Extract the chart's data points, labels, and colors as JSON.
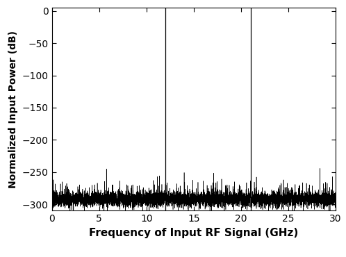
{
  "xlim": [
    0,
    30
  ],
  "ylim": [
    -310,
    5
  ],
  "yticks": [
    0,
    -50,
    -100,
    -150,
    -200,
    -250,
    -300
  ],
  "xticks": [
    0,
    5,
    10,
    15,
    20,
    25,
    30
  ],
  "xlabel": "Frequency of Input RF Signal (GHz)",
  "ylabel": "Normalized Input Power (dB)",
  "spike1_freq": 12.0,
  "spike2_freq": 21.0,
  "noise_floor": -292,
  "noise_std": 6,
  "line_color": "#000000",
  "background_color": "#ffffff",
  "xlabel_fontsize": 11,
  "ylabel_fontsize": 10,
  "tick_fontsize": 10,
  "num_points": 6000,
  "seed": 7
}
